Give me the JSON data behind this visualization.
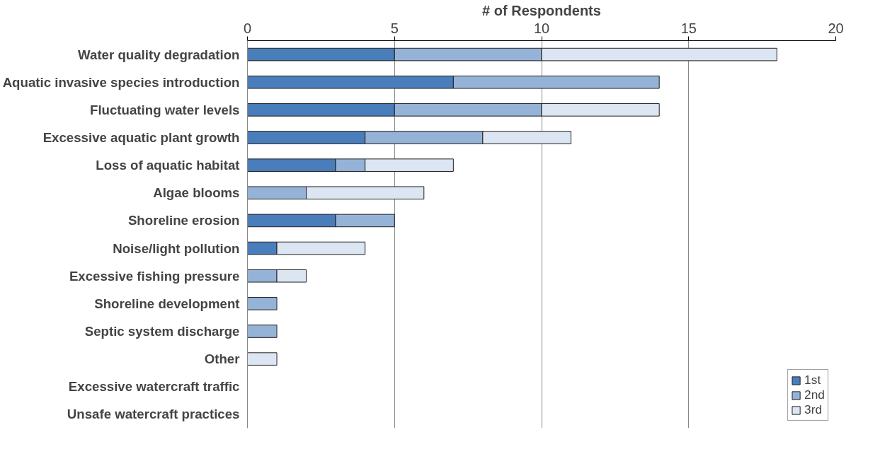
{
  "chart_data": {
    "type": "bar",
    "orientation": "horizontal",
    "stacked": true,
    "xlabel": "# of Respondents",
    "categories": [
      "Water quality degradation",
      "Aquatic invasive species introduction",
      "Fluctuating water levels",
      "Excessive aquatic plant growth",
      "Loss of aquatic habitat",
      "Algae blooms",
      "Shoreline erosion",
      "Noise/light pollution",
      "Excessive fishing pressure",
      "Shoreline development",
      "Septic system discharge",
      "Other",
      "Excessive watercraft traffic",
      "Unsafe watercraft practices"
    ],
    "series": [
      {
        "name": "1st",
        "color": "#4a7ebb",
        "values": [
          5,
          7,
          5,
          4,
          3,
          0,
          3,
          1,
          0,
          0,
          0,
          0,
          0,
          0
        ]
      },
      {
        "name": "2nd",
        "color": "#95b3d7",
        "values": [
          5,
          7,
          5,
          4,
          1,
          2,
          2,
          0,
          1,
          1,
          1,
          0,
          0,
          0
        ]
      },
      {
        "name": "3rd",
        "color": "#dce6f2",
        "values": [
          8,
          0,
          4,
          3,
          3,
          4,
          0,
          3,
          1,
          0,
          0,
          1,
          0,
          0
        ]
      }
    ],
    "xlim": [
      0,
      20
    ],
    "xticks": [
      0,
      5,
      10,
      15,
      20
    ],
    "grid": "x",
    "legend": "bottom right"
  }
}
